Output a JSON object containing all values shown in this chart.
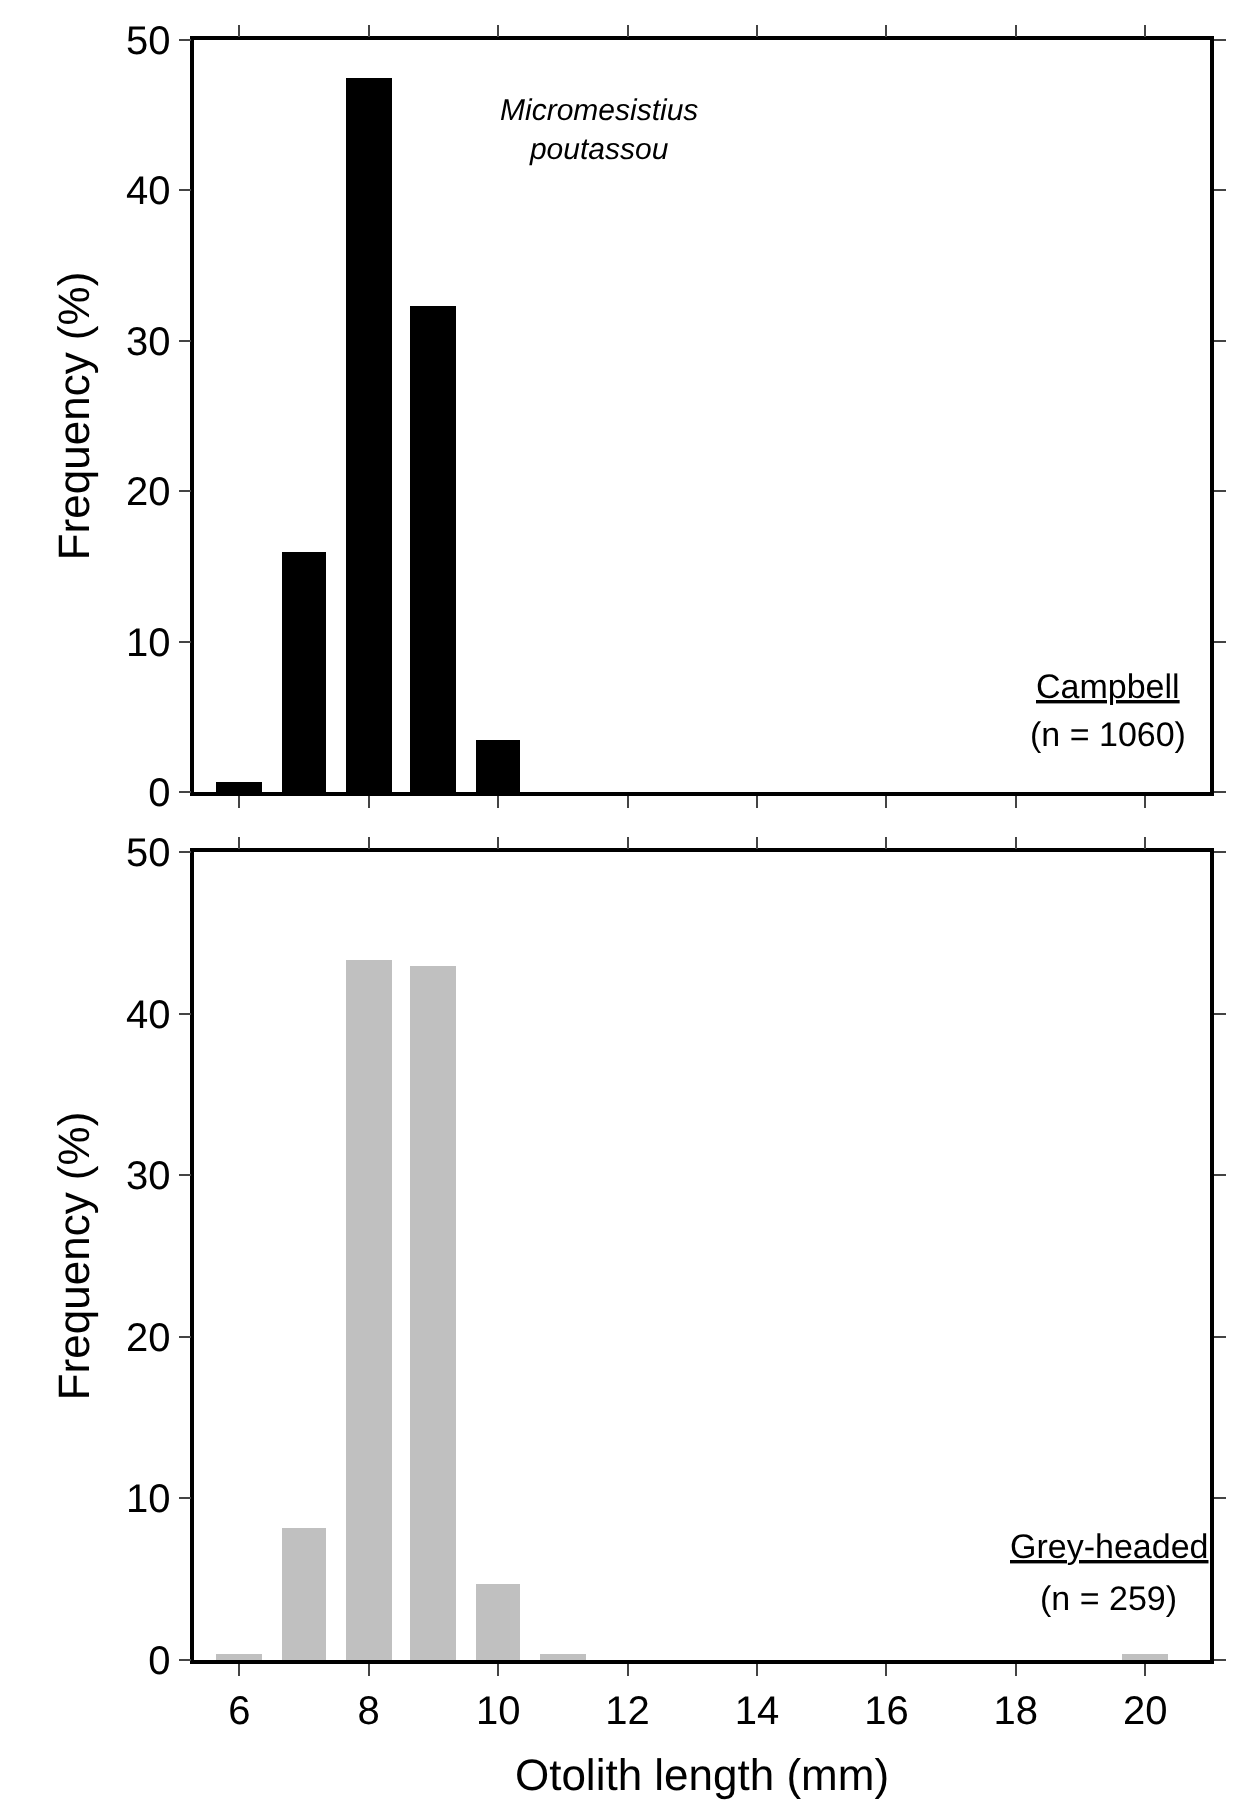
{
  "chart_data": [
    {
      "type": "bar",
      "ylabel": "Frequency (%)",
      "x": [
        6,
        7,
        8,
        9,
        10
      ],
      "values": [
        0.6,
        16,
        47.5,
        32.3,
        3.5
      ],
      "color": "#000000",
      "xlim": [
        5.3,
        21
      ],
      "xticks": [
        6,
        8,
        10,
        12,
        14,
        16,
        18,
        20
      ],
      "ylim": [
        0,
        50
      ],
      "yticks": [
        0,
        10,
        20,
        30,
        40,
        50
      ],
      "tick_labels": "y",
      "annotations": [
        "Micromesistius poutassou",
        "Campbell",
        "(n = 1060)"
      ]
    },
    {
      "type": "bar",
      "ylabel": "Frequency (%)",
      "xlabel": "Otolith length (mm)",
      "x": [
        6,
        7,
        8,
        9,
        10,
        11,
        20
      ],
      "values": [
        0.4,
        8.2,
        43.3,
        42.9,
        4.7,
        0.4,
        0.4
      ],
      "color": "#c0c0c0",
      "xlim": [
        5.3,
        21
      ],
      "xticks": [
        6,
        8,
        10,
        12,
        14,
        16,
        18,
        20
      ],
      "ylim": [
        0,
        50
      ],
      "yticks": [
        0,
        10,
        20,
        30,
        40,
        50
      ],
      "annotations": [
        "Grey-headed",
        "(n = 259)"
      ]
    }
  ]
}
